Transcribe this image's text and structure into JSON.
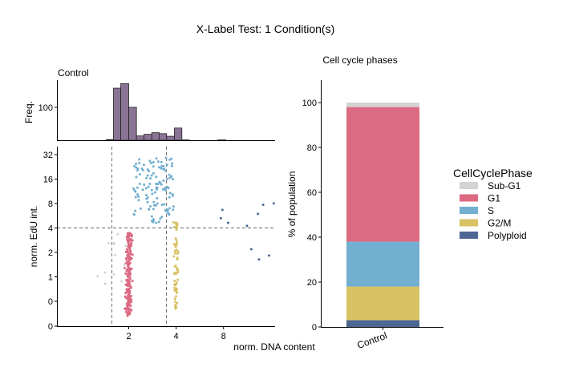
{
  "figure": {
    "title": "X-Label Test: 1 Condition(s)"
  },
  "chart_data": [
    {
      "type": "bar",
      "panel": "histogram",
      "title": "Control",
      "ylabel": "Freq.",
      "y_ticks": [
        100
      ],
      "ylim": [
        0,
        180
      ],
      "bar_color": "#8a7496",
      "bins": [
        {
          "x0": 1.44,
          "x1": 1.6,
          "count": 2
        },
        {
          "x0": 1.6,
          "x1": 1.78,
          "count": 158
        },
        {
          "x0": 1.78,
          "x1": 2.0,
          "count": 172
        },
        {
          "x0": 2.0,
          "x1": 2.24,
          "count": 100
        },
        {
          "x0": 2.24,
          "x1": 2.5,
          "count": 13
        },
        {
          "x0": 2.5,
          "x1": 2.8,
          "count": 18
        },
        {
          "x0": 2.8,
          "x1": 3.12,
          "count": 23
        },
        {
          "x0": 3.12,
          "x1": 3.48,
          "count": 20
        },
        {
          "x0": 3.48,
          "x1": 3.9,
          "count": 12
        },
        {
          "x0": 3.9,
          "x1": 4.35,
          "count": 37
        },
        {
          "x0": 4.35,
          "x1": 4.85,
          "count": 1
        },
        {
          "x0": 7.35,
          "x1": 8.3,
          "count": 1
        }
      ]
    },
    {
      "type": "scatter",
      "panel": "scatter",
      "xlabel": "norm. DNA content",
      "ylabel": "norm. EdU int.",
      "x_scale": "log2",
      "x_ticks": [
        2,
        4,
        8
      ],
      "x_range": [
        0.7,
        17
      ],
      "y_tick_labels": [
        "0",
        "0",
        "1",
        "2",
        "4",
        "8",
        "16",
        "32"
      ],
      "gates": {
        "x": [
          2,
          4
        ],
        "y": 4
      },
      "series": [
        {
          "name": "Sub-G1",
          "color": "#d3d3d3",
          "points": "sub-g1"
        },
        {
          "name": "G1",
          "color": "#dc6a83",
          "points": "g1"
        },
        {
          "name": "S",
          "color": "#72afd0",
          "points": "s"
        },
        {
          "name": "G2/M",
          "color": "#d8c263",
          "points": "g2m"
        },
        {
          "name": "Polyploid",
          "color": "#4d6792",
          "points": "polyploid"
        }
      ]
    },
    {
      "type": "bar",
      "subtype": "stacked",
      "panel": "cell-cycle",
      "title": "Cell cycle phases",
      "ylabel": "% of population",
      "ylim": [
        0,
        110
      ],
      "y_ticks": [
        0,
        20,
        40,
        60,
        80,
        100
      ],
      "categories": [
        "Control"
      ],
      "series": [
        {
          "name": "Polyploid",
          "color": "#4d6792",
          "values": [
            3
          ]
        },
        {
          "name": "G2/M",
          "color": "#d8c263",
          "values": [
            15
          ]
        },
        {
          "name": "S",
          "color": "#72afd0",
          "values": [
            20
          ]
        },
        {
          "name": "G1",
          "color": "#dc6a83",
          "values": [
            60
          ]
        },
        {
          "name": "Sub-G1",
          "color": "#d3d3d3",
          "values": [
            2
          ]
        }
      ]
    }
  ],
  "legend": {
    "title": "CellCyclePhase",
    "placement": "right",
    "items": [
      {
        "label": "Sub-G1",
        "color": "#d3d3d3"
      },
      {
        "label": "G1",
        "color": "#dc6a83"
      },
      {
        "label": "S",
        "color": "#72afd0"
      },
      {
        "label": "G2/M",
        "color": "#d8c263"
      },
      {
        "label": "Polyploid",
        "color": "#4d6792"
      }
    ]
  }
}
